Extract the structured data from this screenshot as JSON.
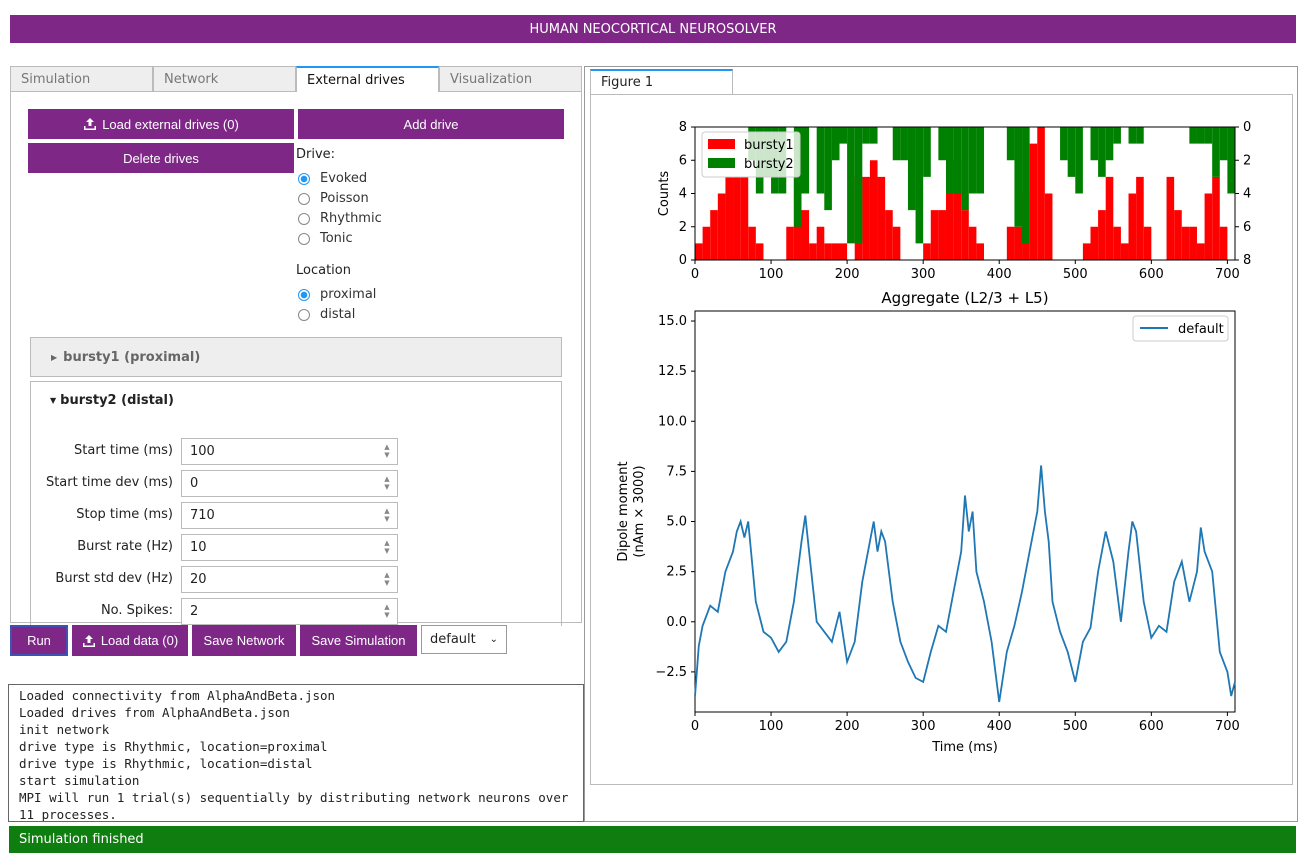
{
  "header": {
    "title": "HUMAN NEOCORTICAL NEUROSOLVER"
  },
  "tabs": [
    "Simulation",
    "Network",
    "External drives",
    "Visualization"
  ],
  "drives_panel": {
    "load_label": "Load external drives (0)",
    "add_label": "Add drive",
    "delete_label": "Delete drives",
    "drive_heading": "Drive:",
    "drive_options": [
      "Evoked",
      "Poisson",
      "Rhythmic",
      "Tonic"
    ],
    "drive_selected": "Evoked",
    "location_heading": "Location",
    "location_options": [
      "proximal",
      "distal"
    ],
    "location_selected": "proximal",
    "collapsed_drive": "bursty1 (proximal)",
    "expanded_drive": "bursty2 (distal)",
    "fields": [
      {
        "label": "Start time (ms)",
        "value": "100"
      },
      {
        "label": "Start time dev (ms)",
        "value": "0"
      },
      {
        "label": "Stop time (ms)",
        "value": "710"
      },
      {
        "label": "Burst rate (Hz)",
        "value": "10"
      },
      {
        "label": "Burst std dev (Hz)",
        "value": "20"
      },
      {
        "label": "No. Spikes:",
        "value": "2"
      }
    ]
  },
  "toolbar": {
    "run_label": "Run",
    "load_data_label": "Load data (0)",
    "save_network_label": "Save Network",
    "save_simulation_label": "Save Simulation",
    "dataset_value": "default"
  },
  "log": {
    "lines": [
      "Loaded connectivity from AlphaAndBeta.json",
      "Loaded drives from AlphaAndBeta.json",
      "init network",
      "drive type is Rhythmic, location=proximal",
      "drive type is Rhythmic, location=distal",
      "start simulation",
      "MPI will run 1 trial(s) sequentially by distributing network neurons over 11 processes."
    ]
  },
  "status": {
    "text": "Simulation finished",
    "color": "#0f7d0f"
  },
  "figure_tab": "Figure 1",
  "colors": {
    "accent": "#7e2787",
    "bursty1": "#ff0000",
    "bursty2": "#008000",
    "dipole": "#1f77b4"
  },
  "chart_data": [
    {
      "type": "bar",
      "title": "",
      "ylabel": "Counts",
      "xlim": [
        0,
        710
      ],
      "ylim_left": [
        0,
        8
      ],
      "ylim_right": [
        8,
        0
      ],
      "bin_width": 10,
      "xticks": [
        0,
        100,
        200,
        300,
        400,
        500,
        600,
        700
      ],
      "yticks_left": [
        0,
        2,
        4,
        6,
        8
      ],
      "yticks_right": [
        0,
        2,
        4,
        6,
        8
      ],
      "legend": "top-left",
      "series": [
        {
          "name": "bursty1",
          "axis": "left",
          "values": [
            1,
            2,
            3,
            4,
            5,
            5,
            5,
            2,
            1,
            0,
            0,
            0,
            2,
            5,
            3,
            1,
            2,
            1,
            1,
            1,
            0,
            5,
            5,
            6,
            5,
            3,
            2,
            0,
            0,
            0,
            1,
            3,
            3,
            4,
            6,
            3,
            2,
            1,
            0,
            0,
            0,
            2,
            2,
            4,
            7,
            8,
            4,
            0,
            0,
            0,
            0,
            1,
            2,
            3,
            5,
            2,
            1,
            4,
            5,
            2,
            0,
            0,
            5,
            3,
            2,
            2,
            1,
            4,
            5,
            2,
            0,
            0
          ]
        },
        {
          "name": "bursty2",
          "axis": "right",
          "values": [
            0,
            0,
            0,
            0,
            0,
            0,
            0,
            2,
            4,
            3,
            4,
            4,
            0,
            6,
            4,
            0,
            4,
            5,
            2,
            1,
            7,
            7,
            1,
            1,
            0,
            0,
            2,
            2,
            5,
            7,
            3,
            0,
            2,
            4,
            4,
            5,
            4,
            4,
            0,
            0,
            0,
            2,
            6,
            7,
            0,
            0,
            0,
            0,
            2,
            3,
            4,
            0,
            2,
            3,
            2,
            1,
            0,
            1,
            1,
            0,
            0,
            0,
            0,
            0,
            0,
            1,
            1,
            1,
            3,
            2,
            4,
            7
          ]
        }
      ]
    },
    {
      "type": "line",
      "title": "Aggregate (L2/3 + L5)",
      "xlabel": "Time (ms)",
      "ylabel": "Dipole moment\n(nAm × 3000)",
      "xlim": [
        0,
        710
      ],
      "ylim": [
        -4.5,
        15.5
      ],
      "xticks": [
        0,
        100,
        200,
        300,
        400,
        500,
        600,
        700
      ],
      "yticks": [
        "−2.5",
        "0.0",
        "2.5",
        "5.0",
        "7.5",
        "10.0",
        "12.5",
        "15.0"
      ],
      "legend": "top-right",
      "series": [
        {
          "name": "default",
          "x": [
            0,
            5,
            10,
            20,
            30,
            40,
            50,
            55,
            60,
            65,
            70,
            75,
            80,
            90,
            100,
            110,
            120,
            130,
            140,
            145,
            150,
            160,
            170,
            180,
            190,
            200,
            210,
            220,
            230,
            235,
            240,
            245,
            250,
            260,
            270,
            280,
            290,
            300,
            310,
            320,
            330,
            340,
            350,
            355,
            360,
            365,
            370,
            380,
            390,
            400,
            410,
            420,
            430,
            440,
            450,
            455,
            460,
            465,
            470,
            480,
            490,
            500,
            510,
            520,
            530,
            540,
            550,
            560,
            570,
            575,
            580,
            590,
            600,
            610,
            620,
            630,
            640,
            650,
            660,
            665,
            670,
            680,
            690,
            700,
            705,
            710
          ],
          "y": [
            -3.7,
            -1.2,
            -0.2,
            0.8,
            0.5,
            2.5,
            3.5,
            4.5,
            5.0,
            4.2,
            5.0,
            3.0,
            1.0,
            -0.5,
            -0.8,
            -1.5,
            -1.0,
            1.0,
            4.0,
            5.3,
            3.5,
            0.0,
            -0.5,
            -1.0,
            0.5,
            -2.0,
            -1.0,
            2.0,
            4.0,
            5.0,
            3.5,
            4.5,
            4.0,
            1.0,
            -1.0,
            -2.0,
            -2.8,
            -3.0,
            -1.5,
            -0.2,
            -0.5,
            1.5,
            3.5,
            6.3,
            4.5,
            5.5,
            2.5,
            1.0,
            -1.0,
            -4.0,
            -1.5,
            -0.2,
            1.5,
            3.5,
            5.5,
            7.8,
            5.5,
            4.0,
            1.0,
            -0.5,
            -1.5,
            -3.0,
            -1.0,
            -0.3,
            2.5,
            4.5,
            3.0,
            0.0,
            3.5,
            5.0,
            4.5,
            1.0,
            -0.8,
            -0.2,
            -0.5,
            2.0,
            3.0,
            1.0,
            2.5,
            4.7,
            3.5,
            2.5,
            -1.5,
            -2.5,
            -3.7,
            -3.0
          ]
        }
      ]
    }
  ]
}
